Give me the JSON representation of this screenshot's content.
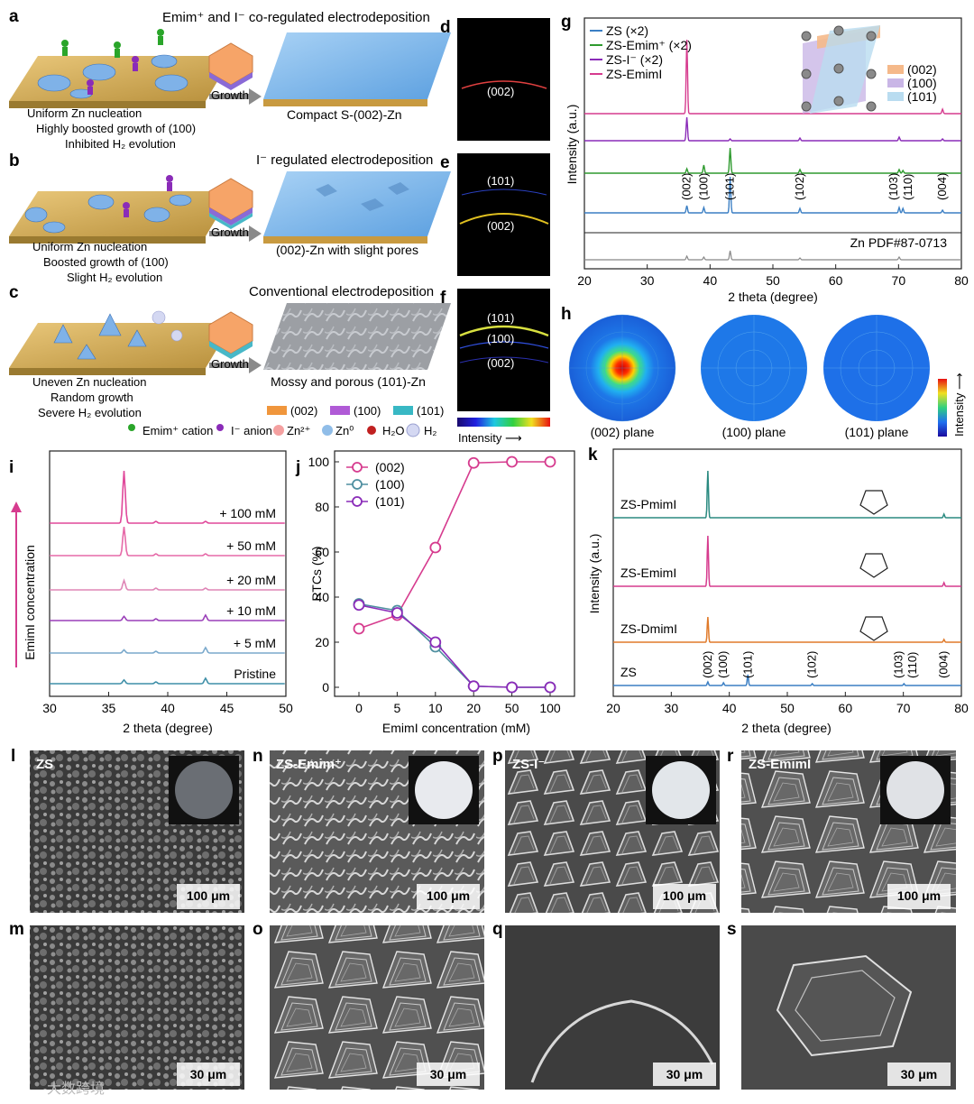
{
  "panel_letters": [
    "a",
    "b",
    "c",
    "d",
    "e",
    "f",
    "g",
    "h",
    "i",
    "j",
    "k",
    "l",
    "m",
    "n",
    "o",
    "p",
    "q",
    "r",
    "s"
  ],
  "schematic": {
    "a": {
      "title": "Emim⁺ and I⁻ co-regulated electrodeposition",
      "left": [
        "Uniform Zn nucleation",
        "Highly boosted growth of (100)",
        "Inhibited H₂ evolution"
      ],
      "arrow": "Growth",
      "right": "Compact S-(002)-Zn"
    },
    "b": {
      "title": "I⁻ regulated electrodeposition",
      "left": [
        "Uniform Zn nucleation",
        "Boosted growth of (100)",
        "Slight H₂ evolution"
      ],
      "arrow": "Growth",
      "right": "(002)-Zn with slight pores"
    },
    "c": {
      "title": "Conventional electrodeposition",
      "left": [
        "Uneven Zn nucleation",
        "Random growth",
        "Severe H₂ evolution"
      ],
      "arrow": "Growth",
      "right": "Mossy and porous (101)-Zn"
    },
    "facet_legend": [
      {
        "label": "(002)",
        "color": "#f0963c"
      },
      {
        "label": "(100)",
        "color": "#b05ad6"
      },
      {
        "label": "(101)",
        "color": "#38b8c4"
      }
    ],
    "species_legend": [
      "Emim⁺ cation",
      "I⁻ anion",
      "Zn²⁺",
      "Zn⁰",
      "H₂O",
      "H₂"
    ]
  },
  "diffraction": {
    "d": [
      "(002)"
    ],
    "e": [
      "(101)",
      "(002)"
    ],
    "f": [
      "(101)",
      "(100)",
      "(002)"
    ],
    "colorbar_label": "Intensity ⟶"
  },
  "chart_data": [
    {
      "id": "g",
      "type": "line",
      "xlabel": "2 theta (degree)",
      "ylabel": "Intensity (a.u.)",
      "xlim": [
        20,
        80
      ],
      "ticks": [
        20,
        30,
        40,
        50,
        60,
        70,
        80
      ],
      "series": [
        {
          "name": "ZS (×2)",
          "color": "#3b7fc4"
        },
        {
          "name": "ZS-Emim⁺ (×2)",
          "color": "#2e9a2e"
        },
        {
          "name": "ZS-I⁻ (×2)",
          "color": "#8a2bb8"
        },
        {
          "name": "ZS-EmimI",
          "color": "#d63b8e"
        }
      ],
      "peak_labels": [
        "(002)",
        "(100)",
        "(101)",
        "(102)",
        "(103)",
        "(110)",
        "(004)"
      ],
      "reference": "Zn  PDF#87-0713",
      "inset_legend": [
        {
          "label": "(002)",
          "color": "#f5b98a"
        },
        {
          "label": "(100)",
          "color": "#c9b6e6"
        },
        {
          "label": "(101)",
          "color": "#b9dcf0"
        }
      ]
    },
    {
      "id": "i",
      "type": "line",
      "xlabel": "2 theta (degree)",
      "ylabel": "EmimI concentration",
      "xlim": [
        30,
        50
      ],
      "ticks": [
        30,
        35,
        40,
        45,
        50
      ],
      "series": [
        {
          "name": "+ 100 mM",
          "color": "#e0489a"
        },
        {
          "name": "+ 50 mM",
          "color": "#e66aa8"
        },
        {
          "name": "+ 20 mM",
          "color": "#df86b6"
        },
        {
          "name": "+ 10 mM",
          "color": "#9a3fb8"
        },
        {
          "name": "+ 5 mM",
          "color": "#7aa9cc"
        },
        {
          "name": "Pristine",
          "color": "#3f8fa8"
        }
      ],
      "peak_heights": [
        1.0,
        0.55,
        0.18,
        0.08,
        0.06,
        0.07
      ]
    },
    {
      "id": "j",
      "type": "line",
      "xlabel": "EmimI concentration (mM)",
      "ylabel": "RTCs (%)",
      "categories": [
        "0",
        "5",
        "10",
        "20",
        "50",
        "100"
      ],
      "ylim": [
        0,
        100
      ],
      "yticks": [
        0,
        20,
        40,
        60,
        80,
        100
      ],
      "series": [
        {
          "name": "(002)",
          "color": "#d63b8e",
          "values": [
            26,
            32,
            62,
            99.5,
            100,
            100
          ]
        },
        {
          "name": "(100)",
          "color": "#4f8fa0",
          "values": [
            37,
            34,
            18,
            0.5,
            0,
            0
          ]
        },
        {
          "name": "(101)",
          "color": "#8a2bb8",
          "values": [
            36.5,
            33,
            20,
            0.5,
            0,
            0
          ]
        }
      ]
    },
    {
      "id": "k",
      "type": "line",
      "xlabel": "2 theta (degree)",
      "ylabel": "Intensity (a.u.)",
      "xlim": [
        20,
        80
      ],
      "ticks": [
        20,
        30,
        40,
        50,
        60,
        70,
        80
      ],
      "series": [
        {
          "name": "ZS-PmimI",
          "color": "#2a8a80"
        },
        {
          "name": "ZS-EmimI",
          "color": "#d63b8e"
        },
        {
          "name": "ZS-DmimI",
          "color": "#e07a2a"
        },
        {
          "name": "ZS",
          "color": "#3b7fc4"
        }
      ],
      "peak_labels": [
        "(002)",
        "(100)",
        "(101)",
        "(102)",
        "(103)",
        "(110)",
        "(004)"
      ]
    }
  ],
  "pole_figures": [
    "(002) plane",
    "(100) plane",
    "(101) plane"
  ],
  "pole_colorbar_label": "Intensity ⟶",
  "sem": {
    "l": {
      "tag": "ZS",
      "scale": "100 μm"
    },
    "n": {
      "tag": "ZS-Emim⁺",
      "scale": "100 μm"
    },
    "p": {
      "tag": "ZS-I⁻",
      "scale": "100 μm"
    },
    "r": {
      "tag": "ZS-EmimI",
      "scale": "100 μm"
    },
    "m": {
      "scale": "30 μm"
    },
    "o": {
      "scale": "30 μm"
    },
    "q": {
      "scale": "30 μm"
    },
    "s": {
      "scale": "30 μm"
    }
  },
  "watermark": "大数跨境"
}
